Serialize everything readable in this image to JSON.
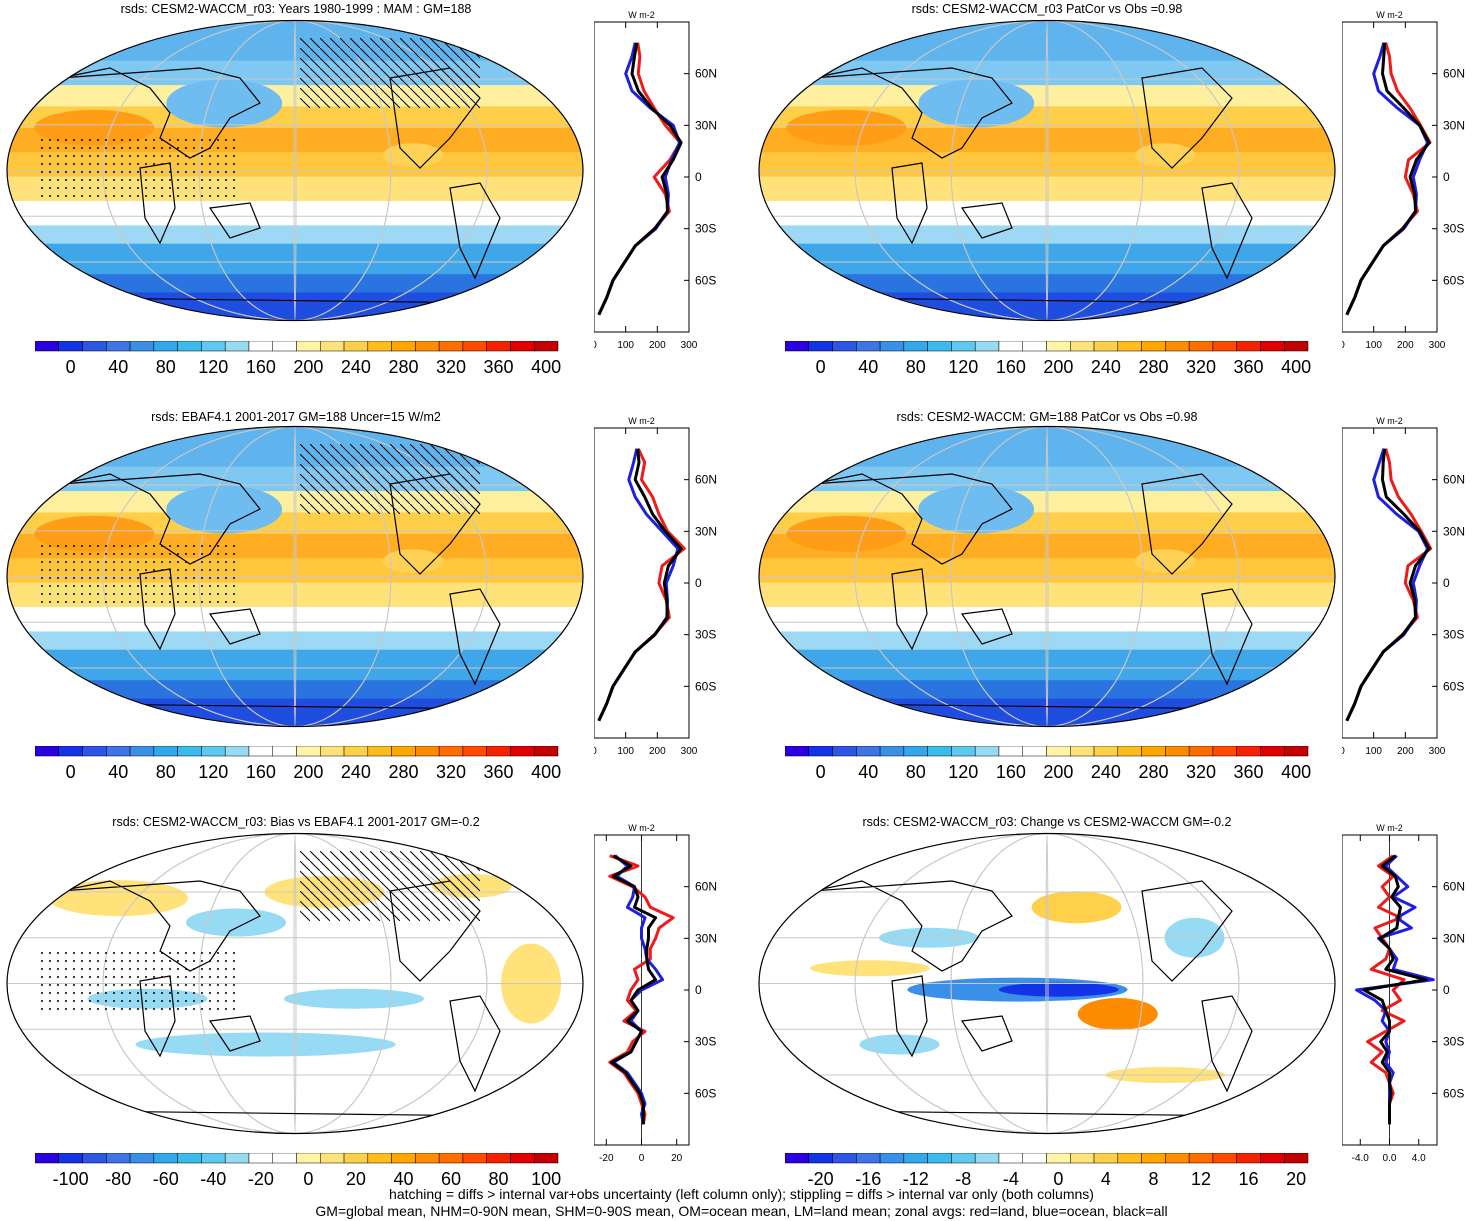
{
  "panels": [
    {
      "title": "rsds: CESM2-WACCM_r03: Years 1980-1999 : MAM : GM=188",
      "colorbar_labels": [
        "0",
        "40",
        "80",
        "120",
        "160",
        "200",
        "240",
        "280",
        "320",
        "360",
        "400"
      ],
      "scale": "abs",
      "hatching": true,
      "stippling": true,
      "zonal": {
        "unit": "W m-2",
        "xticks": [
          "0",
          "100",
          "200",
          "300"
        ],
        "xlim": [
          0,
          300
        ],
        "lat_labels": [
          "60N",
          "30N",
          "0",
          "30S",
          "60S"
        ],
        "lat": [
          78,
          70,
          60,
          50,
          40,
          30,
          20,
          10,
          0,
          -10,
          -20,
          -30,
          -40,
          -50,
          -60,
          -70,
          -80
        ],
        "land": [
          138,
          145,
          140,
          158,
          190,
          225,
          272,
          240,
          190,
          225,
          238,
          190,
          130,
          95,
          60,
          40,
          15
        ],
        "ocean": [
          130,
          120,
          100,
          120,
          178,
          250,
          270,
          245,
          225,
          235,
          232,
          195,
          130,
          95,
          60,
          40,
          15
        ],
        "all": [
          135,
          128,
          120,
          140,
          182,
          240,
          275,
          250,
          215,
          230,
          232,
          192,
          130,
          95,
          60,
          40,
          15
        ]
      }
    },
    {
      "title": "rsds: CESM2-WACCM_r03 PatCor vs Obs =0.98",
      "colorbar_labels": [
        "0",
        "40",
        "80",
        "120",
        "160",
        "200",
        "240",
        "280",
        "320",
        "360",
        "400"
      ],
      "scale": "abs",
      "hatching": false,
      "stippling": false,
      "zonal": {
        "unit": "W m-2",
        "xticks": [
          "0",
          "100",
          "200",
          "300"
        ],
        "xlim": [
          0,
          300
        ],
        "lat_labels": [
          "60N",
          "30N",
          "0",
          "30S",
          "60S"
        ],
        "lat": [
          78,
          70,
          60,
          50,
          40,
          30,
          20,
          10,
          0,
          -10,
          -20,
          -30,
          -40,
          -50,
          -60,
          -70,
          -80
        ],
        "land": [
          138,
          150,
          155,
          175,
          215,
          248,
          278,
          210,
          200,
          225,
          238,
          190,
          130,
          95,
          60,
          40,
          15
        ],
        "ocean": [
          132,
          120,
          100,
          115,
          175,
          245,
          270,
          245,
          225,
          235,
          232,
          195,
          130,
          95,
          60,
          40,
          15
        ],
        "all": [
          135,
          132,
          128,
          142,
          195,
          245,
          275,
          235,
          215,
          230,
          232,
          192,
          130,
          95,
          60,
          40,
          15
        ]
      }
    },
    {
      "title": "rsds: EBAF4.1 2001-2017 GM=188 Uncer=15 W/m2",
      "colorbar_labels": [
        "0",
        "40",
        "80",
        "120",
        "160",
        "200",
        "240",
        "280",
        "320",
        "360",
        "400"
      ],
      "scale": "abs",
      "hatching": true,
      "stippling": true,
      "zonal": {
        "unit": "W m-2",
        "xticks": [
          "0",
          "100",
          "200",
          "300"
        ],
        "xlim": [
          0,
          300
        ],
        "lat_labels": [
          "60N",
          "30N",
          "0",
          "30S",
          "60S"
        ],
        "lat": [
          78,
          70,
          60,
          50,
          40,
          30,
          20,
          10,
          0,
          -10,
          -20,
          -30,
          -40,
          -50,
          -60,
          -70,
          -80
        ],
        "land": [
          140,
          160,
          150,
          185,
          205,
          232,
          285,
          215,
          205,
          228,
          238,
          190,
          130,
          95,
          60,
          40,
          15
        ],
        "ocean": [
          135,
          125,
          110,
          130,
          165,
          215,
          265,
          250,
          228,
          232,
          230,
          192,
          130,
          95,
          60,
          40,
          15
        ],
        "all": [
          138,
          142,
          130,
          160,
          185,
          225,
          275,
          235,
          222,
          230,
          232,
          192,
          130,
          95,
          60,
          40,
          15
        ]
      }
    },
    {
      "title": "rsds: CESM2-WACCM: GM=188 PatCor vs Obs =0.98",
      "colorbar_labels": [
        "0",
        "40",
        "80",
        "120",
        "160",
        "200",
        "240",
        "280",
        "320",
        "360",
        "400"
      ],
      "scale": "abs",
      "hatching": false,
      "stippling": false,
      "zonal": {
        "unit": "W m-2",
        "xticks": [
          "0",
          "100",
          "200",
          "300"
        ],
        "xlim": [
          0,
          300
        ],
        "lat_labels": [
          "60N",
          "30N",
          "0",
          "30S",
          "60S"
        ],
        "lat": [
          78,
          70,
          60,
          50,
          40,
          30,
          20,
          10,
          0,
          -10,
          -20,
          -30,
          -40,
          -50,
          -60,
          -70,
          -80
        ],
        "land": [
          138,
          150,
          155,
          178,
          218,
          250,
          280,
          208,
          200,
          225,
          238,
          190,
          130,
          95,
          60,
          40,
          15
        ],
        "ocean": [
          132,
          118,
          100,
          115,
          172,
          242,
          270,
          245,
          225,
          235,
          232,
          195,
          130,
          95,
          60,
          40,
          15
        ],
        "all": [
          135,
          130,
          128,
          140,
          195,
          245,
          275,
          232,
          215,
          230,
          232,
          192,
          130,
          95,
          60,
          40,
          15
        ]
      }
    },
    {
      "title": "rsds: CESM2-WACCM_r03: Bias vs EBAF4.1 2001-2017 GM=-0.2",
      "colorbar_labels": [
        "-100",
        "-80",
        "-60",
        "-40",
        "-20",
        "0",
        "20",
        "40",
        "60",
        "80",
        "100"
      ],
      "scale": "bias",
      "hatching": true,
      "stippling": true,
      "zonal": {
        "unit": "W m-2",
        "xticks": [
          "-20",
          "0",
          "20"
        ],
        "xtick_values": [
          -20,
          0,
          20
        ],
        "xlim": [
          -27,
          27
        ],
        "lat_labels": [
          "60N",
          "30N",
          "0",
          "30S",
          "60S"
        ],
        "lat": [
          78,
          72,
          66,
          60,
          54,
          48,
          42,
          36,
          30,
          24,
          18,
          12,
          6,
          0,
          -6,
          -12,
          -18,
          -24,
          -30,
          -36,
          -42,
          -48,
          -54,
          -60,
          -66,
          -72,
          -78
        ],
        "land": [
          -18,
          -2,
          -18,
          -5,
          2,
          5,
          18,
          10,
          8,
          5,
          5,
          -4,
          -2,
          -6,
          -8,
          -3,
          -10,
          2,
          -5,
          -8,
          -18,
          -10,
          -6,
          -2,
          0,
          2,
          1
        ],
        "ocean": [
          -15,
          -8,
          -14,
          -4,
          -5,
          -8,
          2,
          0,
          0,
          2,
          3,
          8,
          12,
          0,
          -6,
          -2,
          -6,
          0,
          -3,
          -6,
          -16,
          -8,
          -4,
          0,
          2,
          0,
          1
        ],
        "all": [
          -16,
          -6,
          -16,
          -4,
          -2,
          -4,
          8,
          4,
          4,
          3,
          3,
          4,
          8,
          -2,
          -6,
          -2,
          -8,
          0,
          -3,
          -6,
          -17,
          -9,
          -5,
          -1,
          1,
          1,
          1
        ]
      }
    },
    {
      "title": "rsds: CESM2-WACCM_r03: Change vs CESM2-WACCM GM=-0.2",
      "colorbar_labels": [
        "-20",
        "-16",
        "-12",
        "-8",
        "-4",
        "0",
        "4",
        "8",
        "12",
        "16",
        "20"
      ],
      "scale": "bias",
      "hatching": false,
      "stippling": false,
      "zonal": {
        "unit": "W m-2",
        "xticks": [
          "-4.0",
          "0.0",
          "4.0"
        ],
        "xtick_values": [
          -4,
          0,
          4
        ],
        "xlim": [
          -6.5,
          6.5
        ],
        "lat_labels": [
          "60N",
          "30N",
          "0",
          "30S",
          "60S"
        ],
        "lat": [
          78,
          72,
          66,
          60,
          54,
          48,
          42,
          36,
          30,
          24,
          18,
          12,
          6,
          0,
          -6,
          -12,
          -18,
          -24,
          -30,
          -36,
          -42,
          -48,
          -54,
          -60,
          -66,
          -72,
          -78
        ],
        "land": [
          0.5,
          -1.5,
          0.5,
          -1,
          0,
          -1.5,
          1.5,
          -2,
          -1,
          0,
          -0.5,
          -2.5,
          2,
          0.5,
          1.5,
          -1,
          2,
          -0.5,
          -3,
          -1,
          -2.5,
          -0.5,
          0,
          0.5,
          0,
          0,
          0
        ],
        "ocean": [
          1,
          -0.5,
          1,
          2.5,
          0.5,
          3.5,
          1,
          3,
          -1.5,
          0,
          1,
          0.5,
          6,
          -4.5,
          -2,
          -0.5,
          -1,
          0,
          -0.5,
          0,
          -0.5,
          0.5,
          0,
          0,
          0,
          0,
          0
        ],
        "all": [
          0.8,
          -1,
          0.8,
          1.2,
          0.3,
          1.5,
          1.2,
          1,
          -1.3,
          0,
          0.5,
          -0.5,
          5,
          -3.5,
          -1,
          -0.5,
          0,
          0,
          -1.2,
          -0.3,
          -1,
          0,
          0,
          0.2,
          0,
          0,
          0
        ]
      }
    }
  ],
  "footer": {
    "line1": "hatching = diffs > internal var+obs uncertainty (left column only); stippling = diffs > internal var only (both columns)",
    "line2": "GM=global mean, NHM=0-90N mean, SHM=0-90S mean, OM=ocean mean, LM=land mean; zonal avgs: red=land, blue=ocean, black=all"
  },
  "colors": {
    "land": "#ee1b1b",
    "ocean": "#1f1fe0",
    "all": "#000000"
  }
}
